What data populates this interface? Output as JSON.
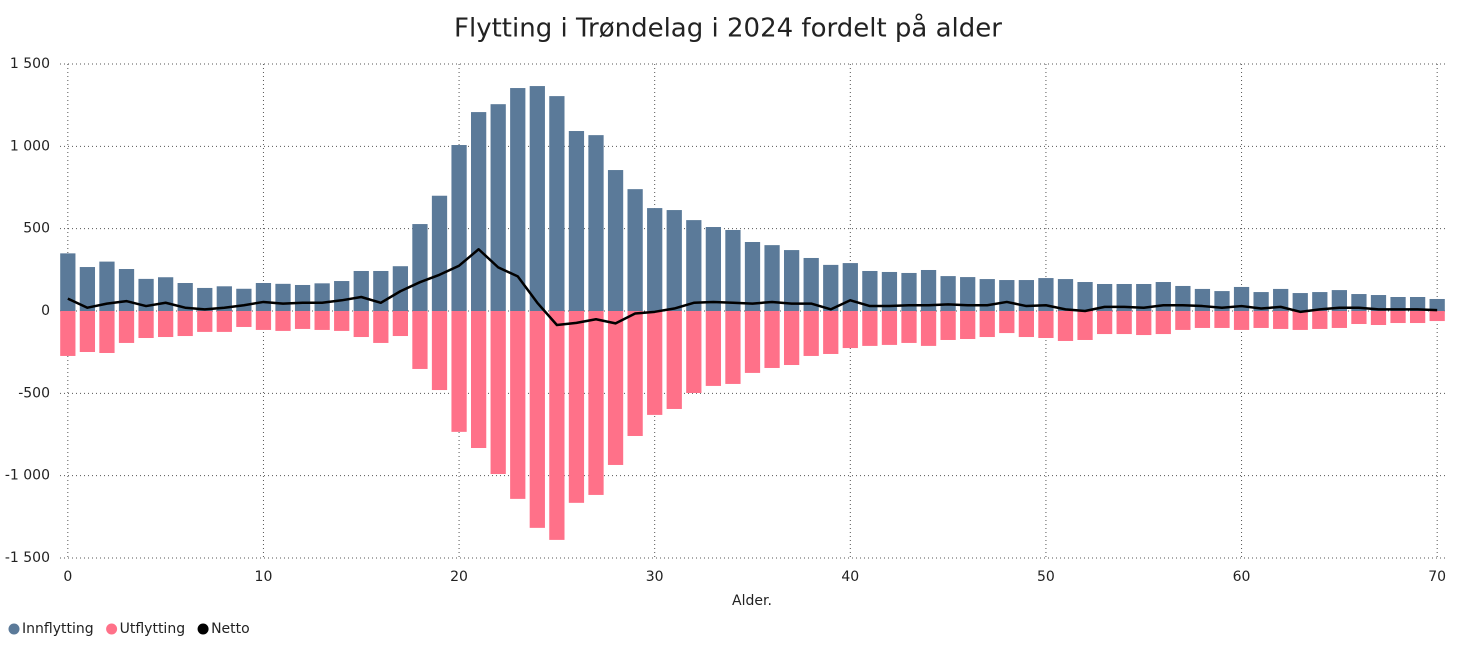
{
  "chart_data": {
    "type": "bar",
    "title": "Flytting i Trøndelag i 2024 fordelt på alder",
    "x_label": "Alder.",
    "x": [
      0,
      1,
      2,
      3,
      4,
      5,
      6,
      7,
      8,
      9,
      10,
      11,
      12,
      13,
      14,
      15,
      16,
      17,
      18,
      19,
      20,
      21,
      22,
      23,
      24,
      25,
      26,
      27,
      28,
      29,
      30,
      31,
      32,
      33,
      34,
      35,
      36,
      37,
      38,
      39,
      40,
      41,
      42,
      43,
      44,
      45,
      46,
      47,
      48,
      49,
      50,
      51,
      52,
      53,
      54,
      55,
      56,
      57,
      58,
      59,
      60,
      61,
      62,
      63,
      64,
      65,
      66,
      67,
      68,
      69,
      70
    ],
    "series": [
      {
        "name": "Innflytting",
        "type": "bar",
        "color": "#5b7a99",
        "values": [
          350,
          267,
          300,
          255,
          195,
          205,
          170,
          140,
          150,
          135,
          170,
          165,
          158,
          168,
          182,
          243,
          243,
          272,
          528,
          700,
          1008,
          1208,
          1256,
          1354,
          1366,
          1305,
          1093,
          1068,
          856,
          740,
          625,
          613,
          552,
          510,
          492,
          419,
          400,
          370,
          322,
          280,
          291,
          243,
          237,
          231,
          249,
          212,
          206,
          194,
          188,
          188,
          200,
          194,
          176,
          164,
          164,
          164,
          176,
          152,
          134,
          121,
          146,
          115,
          134,
          109,
          115,
          127,
          103,
          97,
          85,
          85,
          73
        ]
      },
      {
        "name": "Utflytting",
        "type": "bar",
        "color": "#ff7189",
        "values": [
          -273,
          -249,
          -255,
          -194,
          -164,
          -158,
          -152,
          -127,
          -127,
          -97,
          -115,
          -121,
          -109,
          -115,
          -121,
          -158,
          -194,
          -152,
          -352,
          -480,
          -734,
          -832,
          -990,
          -1141,
          -1317,
          -1390,
          -1165,
          -1117,
          -935,
          -759,
          -631,
          -595,
          -498,
          -455,
          -443,
          -376,
          -346,
          -328,
          -273,
          -261,
          -225,
          -212,
          -206,
          -194,
          -212,
          -176,
          -170,
          -158,
          -134,
          -158,
          -164,
          -182,
          -176,
          -140,
          -140,
          -146,
          -140,
          -115,
          -103,
          -103,
          -115,
          -103,
          -109,
          -115,
          -109,
          -103,
          -79,
          -85,
          -73,
          -73,
          -61
        ]
      },
      {
        "name": "Netto",
        "type": "line",
        "color": "#000000",
        "values": [
          75,
          20,
          45,
          60,
          30,
          50,
          20,
          10,
          20,
          35,
          55,
          45,
          50,
          50,
          65,
          85,
          50,
          120,
          175,
          220,
          275,
          375,
          265,
          210,
          50,
          -85,
          -72,
          -50,
          -75,
          -15,
          -5,
          15,
          50,
          55,
          50,
          45,
          55,
          45,
          45,
          10,
          65,
          30,
          30,
          35,
          35,
          40,
          35,
          35,
          55,
          30,
          35,
          10,
          0,
          25,
          25,
          20,
          35,
          35,
          30,
          20,
          30,
          15,
          25,
          -5,
          10,
          20,
          20,
          10,
          10,
          10,
          5
        ]
      }
    ],
    "xlim": [
      -0.4,
      70.4
    ],
    "xticks": [
      0,
      10,
      20,
      30,
      40,
      50,
      60,
      70
    ],
    "ylim": [
      -1500,
      1500
    ],
    "yticks": [
      {
        "value": -1500,
        "label": "-1 500"
      },
      {
        "value": -1000,
        "label": "-1 000"
      },
      -500,
      0,
      500,
      {
        "value": 1000,
        "label": "1 000"
      },
      {
        "value": 1500,
        "label": "1 500"
      }
    ],
    "grid": true,
    "legend": "bottom-left"
  }
}
